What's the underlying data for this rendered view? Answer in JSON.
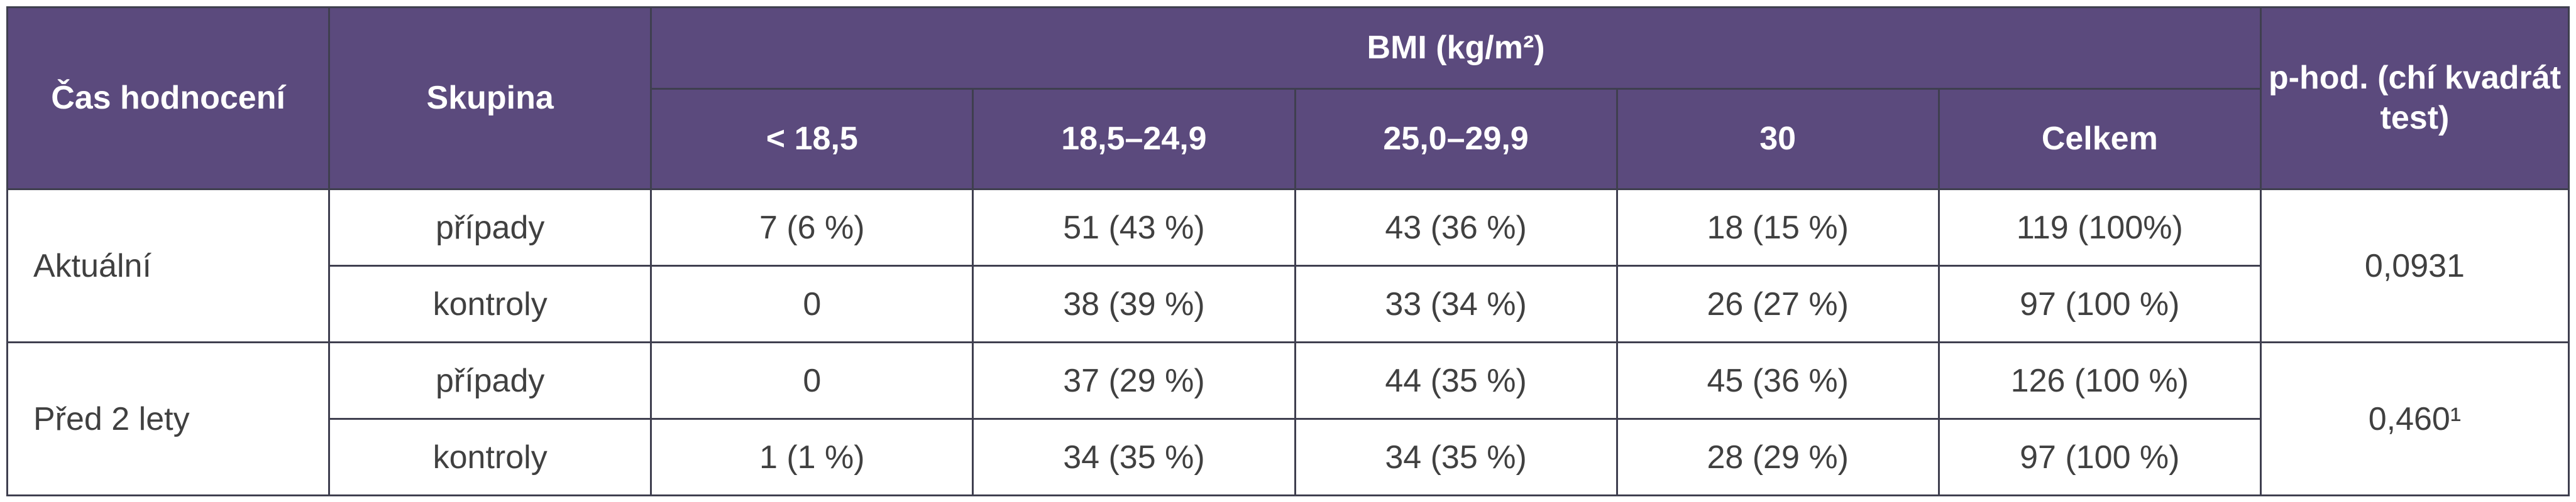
{
  "header": {
    "time": "Čas hodnocení",
    "group": "Skupina",
    "bmi": "BMI (kg/m²)",
    "cols": [
      "< 18,5",
      "18,5–24,9",
      "25,0–29,9",
      "30",
      "Celkem"
    ],
    "p": "p-hod. (chí kvadrát test)"
  },
  "sections": [
    {
      "time": "Aktuální",
      "p": "0,0931",
      "rows": [
        {
          "group": "případy",
          "cells": [
            "7 (6 %)",
            "51 (43 %)",
            "43 (36 %)",
            "18 (15 %)",
            "119 (100%)"
          ]
        },
        {
          "group": "kontroly",
          "cells": [
            "0",
            "38 (39 %)",
            "33 (34 %)",
            "26 (27 %)",
            "97 (100 %)"
          ]
        }
      ]
    },
    {
      "time": "Před 2 lety",
      "p": "0,460¹",
      "rows": [
        {
          "group": "případy",
          "cells": [
            "0",
            "37 (29 %)",
            "44 (35 %)",
            "45 (36 %)",
            "126 (100 %)"
          ]
        },
        {
          "group": "kontroly",
          "cells": [
            "1 (1 %)",
            "34 (35 %)",
            "34 (35 %)",
            "28 (29 %)",
            "97 (100 %)"
          ]
        }
      ]
    }
  ]
}
